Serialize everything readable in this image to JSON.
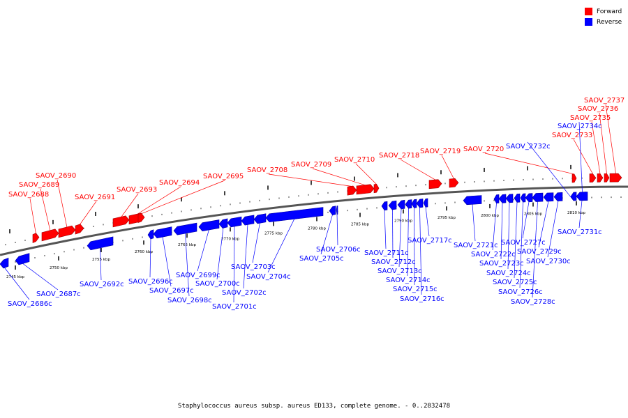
{
  "legend": {
    "forward_label": "Forward",
    "reverse_label": "Reverse",
    "forward_color": "#ff0000",
    "reverse_color": "#0000ff"
  },
  "caption": "Staphylococcus aureus subsp. aureus ED133, complete genome. - 0..2832478",
  "ticks": [
    {
      "label": "2745 kbp"
    },
    {
      "label": "2750 kbp"
    },
    {
      "label": "2755 kbp"
    },
    {
      "label": "2760 kbp"
    },
    {
      "label": "2765 kbp"
    },
    {
      "label": "2770 kbp"
    },
    {
      "label": "2775 kbp"
    },
    {
      "label": "2780 kbp"
    },
    {
      "label": "2785 kbp"
    },
    {
      "label": "2790 kbp"
    },
    {
      "label": "2795 kbp"
    },
    {
      "label": "2800 kbp"
    },
    {
      "label": "2805 kbp"
    },
    {
      "label": "2810 kbp"
    }
  ],
  "genes": [
    {
      "label": "SAOV_2688",
      "strand": "forward"
    },
    {
      "label": "SAOV_2689",
      "strand": "forward"
    },
    {
      "label": "SAOV_2690",
      "strand": "forward"
    },
    {
      "label": "SAOV_2691",
      "strand": "forward"
    },
    {
      "label": "SAOV_2693",
      "strand": "forward"
    },
    {
      "label": "SAOV_2694",
      "strand": "forward"
    },
    {
      "label": "SAOV_2695",
      "strand": "forward"
    },
    {
      "label": "SAOV_2708",
      "strand": "forward"
    },
    {
      "label": "SAOV_2709",
      "strand": "forward"
    },
    {
      "label": "SAOV_2710",
      "strand": "forward"
    },
    {
      "label": "SAOV_2718",
      "strand": "forward"
    },
    {
      "label": "SAOV_2719",
      "strand": "forward"
    },
    {
      "label": "SAOV_2720",
      "strand": "forward"
    },
    {
      "label": "SAOV_2733",
      "strand": "forward"
    },
    {
      "label": "SAOV_2735",
      "strand": "forward"
    },
    {
      "label": "SAOV_2736",
      "strand": "forward"
    },
    {
      "label": "SAOV_2737",
      "strand": "forward"
    },
    {
      "label": "SAOV_2732c",
      "strand": "reverse"
    },
    {
      "label": "SAOV_2734c",
      "strand": "reverse"
    },
    {
      "label": "SAOV_2686c",
      "strand": "reverse"
    },
    {
      "label": "SAOV_2687c",
      "strand": "reverse"
    },
    {
      "label": "SAOV_2692c",
      "strand": "reverse"
    },
    {
      "label": "SAOV_2696c",
      "strand": "reverse"
    },
    {
      "label": "SAOV_2697c",
      "strand": "reverse"
    },
    {
      "label": "SAOV_2698c",
      "strand": "reverse"
    },
    {
      "label": "SAOV_2699c",
      "strand": "reverse"
    },
    {
      "label": "SAOV_2700c",
      "strand": "reverse"
    },
    {
      "label": "SAOV_2701c",
      "strand": "reverse"
    },
    {
      "label": "SAOV_2702c",
      "strand": "reverse"
    },
    {
      "label": "SAOV_2703c",
      "strand": "reverse"
    },
    {
      "label": "SAOV_2704c",
      "strand": "reverse"
    },
    {
      "label": "SAOV_2705c",
      "strand": "reverse"
    },
    {
      "label": "SAOV_2706c",
      "strand": "reverse"
    },
    {
      "label": "SAOV_2711c",
      "strand": "reverse"
    },
    {
      "label": "SAOV_2712c",
      "strand": "reverse"
    },
    {
      "label": "SAOV_2713c",
      "strand": "reverse"
    },
    {
      "label": "SAOV_2714c",
      "strand": "reverse"
    },
    {
      "label": "SAOV_2715c",
      "strand": "reverse"
    },
    {
      "label": "SAOV_2716c",
      "strand": "reverse"
    },
    {
      "label": "SAOV_2717c",
      "strand": "reverse"
    },
    {
      "label": "SAOV_2721c",
      "strand": "reverse"
    },
    {
      "label": "SAOV_2722c",
      "strand": "reverse"
    },
    {
      "label": "SAOV_2723c",
      "strand": "reverse"
    },
    {
      "label": "SAOV_2724c",
      "strand": "reverse"
    },
    {
      "label": "SAOV_2725c",
      "strand": "reverse"
    },
    {
      "label": "SAOV_2726c",
      "strand": "reverse"
    },
    {
      "label": "SAOV_2727c",
      "strand": "reverse"
    },
    {
      "label": "SAOV_2728c",
      "strand": "reverse"
    },
    {
      "label": "SAOV_2729c",
      "strand": "reverse"
    },
    {
      "label": "SAOV_2730c",
      "strand": "reverse"
    },
    {
      "label": "SAOV_2731c",
      "strand": "reverse"
    }
  ]
}
